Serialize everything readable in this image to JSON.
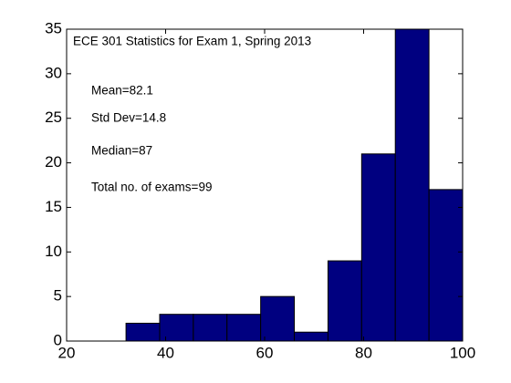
{
  "chart_data": {
    "type": "histogram",
    "title": "ECE 301 Statistics for Exam 1, Spring 2013",
    "annotations": [
      "Mean=82.1",
      "Std Dev=14.8",
      "Median=87",
      "Total no. of exams=99"
    ],
    "bins": [
      32,
      38.8,
      45.6,
      52.4,
      59.2,
      66,
      72.8,
      79.6,
      86.4,
      93.2,
      100
    ],
    "values": [
      2,
      3,
      3,
      3,
      5,
      1,
      9,
      21,
      35,
      17
    ],
    "color": "#000080",
    "xlim": [
      20,
      100
    ],
    "xticks": [
      20,
      40,
      60,
      80,
      100
    ],
    "ylim": [
      0,
      35
    ],
    "yticks": [
      0,
      5,
      10,
      15,
      20,
      25,
      30,
      35
    ],
    "grid": false
  }
}
